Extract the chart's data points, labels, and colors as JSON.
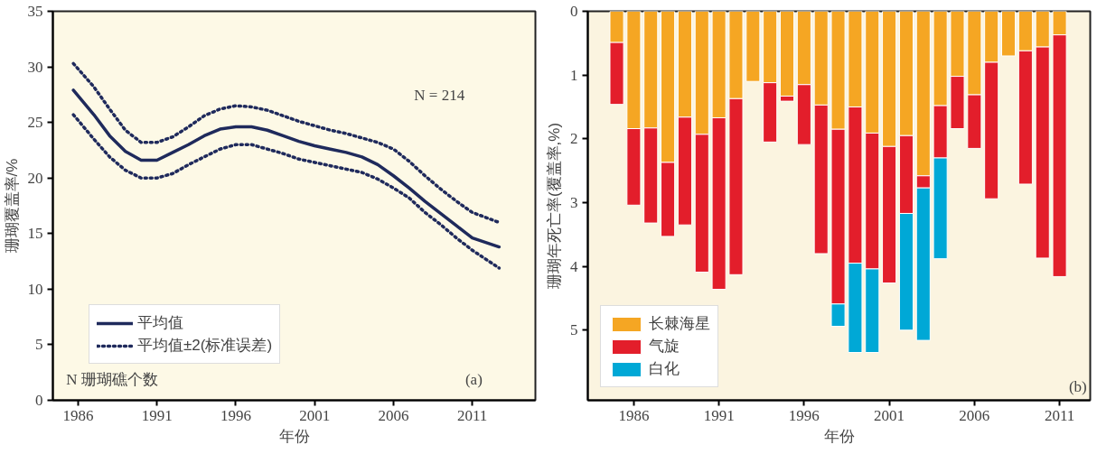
{
  "chart_data": [
    {
      "type": "line",
      "xlabel": "年份",
      "ylabel": "珊瑚覆盖率/%",
      "x": [
        1985.7,
        1987,
        1988,
        1989,
        1990,
        1991,
        1992,
        1993,
        1994,
        1995,
        1996,
        1997,
        1998,
        1999,
        2000,
        2001,
        2002,
        2003,
        2004,
        2005,
        2006,
        2007,
        2008,
        2009,
        2010,
        2011,
        2012.7
      ],
      "series": [
        {
          "name": "平均值",
          "color": "#1f2a5c",
          "line_style": "solid",
          "values": [
            27.9,
            25.7,
            23.8,
            22.4,
            21.6,
            21.6,
            22.3,
            23.0,
            23.8,
            24.4,
            24.6,
            24.6,
            24.3,
            23.8,
            23.3,
            22.9,
            22.6,
            22.3,
            21.9,
            21.2,
            20.2,
            19.1,
            17.9,
            16.8,
            15.7,
            14.6,
            13.8
          ]
        },
        {
          "name": "平均值±2(标准误差)",
          "color": "#1f2a5c",
          "line_style": "dotted",
          "values": [
            30.3,
            28.2,
            26.2,
            24.3,
            23.2,
            23.2,
            23.7,
            24.6,
            25.6,
            26.2,
            26.5,
            26.4,
            26.1,
            25.6,
            25.1,
            24.7,
            24.3,
            24.0,
            23.6,
            23.2,
            22.6,
            21.5,
            20.2,
            19.0,
            17.9,
            16.9,
            16.0
          ]
        },
        {
          "color": "#1f2a5c",
          "line_style": "dotted",
          "values": [
            25.7,
            23.5,
            21.9,
            20.7,
            20.0,
            20.0,
            20.4,
            21.2,
            21.9,
            22.6,
            23.0,
            23.0,
            22.6,
            22.2,
            21.7,
            21.4,
            21.1,
            20.8,
            20.5,
            19.9,
            19.1,
            18.2,
            16.9,
            15.8,
            14.6,
            13.5,
            11.9
          ]
        }
      ],
      "xlim": [
        1984.4,
        2015
      ],
      "xticks": [
        1986,
        1991,
        1996,
        2001,
        2006,
        2011
      ],
      "ylim": [
        0,
        35
      ],
      "yticks": [
        0,
        5,
        10,
        15,
        20,
        25,
        30,
        35
      ],
      "grid": false,
      "legend": "bottom left",
      "annotations": [
        "N = 214",
        "N   珊瑚礁个数",
        "(a)"
      ]
    },
    {
      "type": "bar",
      "stacked": true,
      "xlabel": "年份",
      "ylabel": "珊瑚年死亡率(覆盖率,%)",
      "categories": [
        null,
        "1986",
        null,
        null,
        null,
        null,
        "1991",
        null,
        null,
        null,
        null,
        "1996",
        null,
        null,
        null,
        null,
        "2001",
        null,
        null,
        null,
        null,
        "2006",
        null,
        null,
        null,
        null,
        "2011"
      ],
      "series": [
        {
          "name": "长棘海星",
          "color": "#f5a623",
          "values": [
            0.49,
            1.84,
            1.83,
            2.37,
            1.66,
            1.93,
            1.67,
            1.37,
            1.1,
            1.12,
            1.33,
            1.15,
            1.47,
            1.85,
            1.5,
            1.91,
            2.12,
            1.95,
            2.58,
            1.48,
            1.02,
            1.31,
            0.8,
            0.7,
            0.62,
            0.56,
            0.37
          ]
        },
        {
          "name": "气旋",
          "color": "#e31e2b",
          "values": [
            0.97,
            1.2,
            1.49,
            1.16,
            1.69,
            2.16,
            2.69,
            2.76,
            0,
            0.93,
            0.08,
            0.94,
            2.33,
            2.74,
            2.45,
            2.13,
            2.14,
            1.22,
            0.19,
            0.82,
            0.82,
            0.84,
            2.14,
            0,
            2.09,
            3.31,
            3.79
          ]
        },
        {
          "name": "白化",
          "color": "#00a8d6",
          "values": [
            0,
            0,
            0,
            0,
            0,
            0,
            0,
            0,
            0,
            0,
            0,
            0,
            0,
            0.35,
            1.4,
            1.31,
            0,
            1.83,
            2.39,
            1.58,
            0,
            0,
            0,
            0,
            0,
            0,
            0
          ]
        }
      ],
      "ylim": [
        6.1,
        0
      ],
      "yticks": [
        0,
        1,
        2,
        3,
        4,
        5
      ],
      "grid": false,
      "legend": "bottom left",
      "annotations": [
        "(b)"
      ]
    }
  ]
}
